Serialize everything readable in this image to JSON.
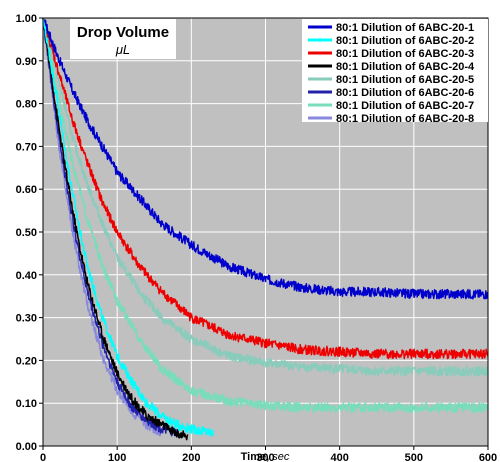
{
  "chart_data": {
    "type": "line",
    "title": "Drop Volume",
    "subtitle": "μL",
    "xlabel": "Time,",
    "xlabel_unit": "sec",
    "ylabel": "",
    "xlim": [
      0,
      600
    ],
    "ylim": [
      0,
      1.0
    ],
    "xticks": [
      0,
      100,
      200,
      300,
      400,
      500,
      600
    ],
    "yticks": [
      "0.00",
      "0.10",
      "0.20",
      "0.30",
      "0.40",
      "0.50",
      "0.60",
      "0.70",
      "0.80",
      "0.90",
      "1.00"
    ],
    "grid": true,
    "background": "#c0c0c0",
    "legend_position": "top-right",
    "series": [
      {
        "name": "80:1 Dilution of 6ABC-20-1",
        "color": "#0000cc",
        "x": [
          0,
          20,
          40,
          60,
          80,
          100,
          130,
          160,
          200,
          250,
          300,
          350,
          400,
          450,
          500,
          550,
          600
        ],
        "y": [
          1.0,
          0.91,
          0.83,
          0.76,
          0.7,
          0.64,
          0.58,
          0.52,
          0.47,
          0.42,
          0.39,
          0.37,
          0.36,
          0.36,
          0.355,
          0.355,
          0.355
        ]
      },
      {
        "name": "80:1 Dilution of 6ABC-20-2",
        "color": "#00ffff",
        "x": [
          0,
          10,
          20,
          30,
          40,
          50,
          60,
          70,
          80,
          100,
          120,
          140,
          160,
          180,
          200,
          230
        ],
        "y": [
          1.0,
          0.9,
          0.8,
          0.69,
          0.59,
          0.5,
          0.42,
          0.36,
          0.3,
          0.21,
          0.15,
          0.1,
          0.07,
          0.05,
          0.04,
          0.03
        ]
      },
      {
        "name": "80:1 Dilution of 6ABC-20-3",
        "color": "#ee0000",
        "x": [
          0,
          20,
          40,
          60,
          80,
          100,
          130,
          160,
          200,
          250,
          300,
          350,
          400,
          450,
          500,
          550,
          600
        ],
        "y": [
          1.0,
          0.88,
          0.76,
          0.66,
          0.57,
          0.5,
          0.42,
          0.36,
          0.3,
          0.26,
          0.24,
          0.225,
          0.22,
          0.215,
          0.215,
          0.215,
          0.215
        ]
      },
      {
        "name": "80:1 Dilution of 6ABC-20-4",
        "color": "#000000",
        "x": [
          0,
          10,
          20,
          30,
          40,
          50,
          60,
          70,
          80,
          100,
          120,
          140,
          160,
          180,
          195
        ],
        "y": [
          1.0,
          0.88,
          0.76,
          0.65,
          0.55,
          0.46,
          0.38,
          0.32,
          0.26,
          0.17,
          0.11,
          0.07,
          0.05,
          0.03,
          0.02
        ]
      },
      {
        "name": "80:1 Dilution of 6ABC-20-5",
        "color": "#88ccbb",
        "x": [
          0,
          20,
          40,
          60,
          80,
          100,
          130,
          160,
          200,
          250,
          300,
          350,
          400,
          450,
          500,
          550,
          600
        ],
        "y": [
          1.0,
          0.86,
          0.72,
          0.61,
          0.52,
          0.44,
          0.36,
          0.3,
          0.25,
          0.21,
          0.195,
          0.185,
          0.18,
          0.175,
          0.175,
          0.175,
          0.175
        ]
      },
      {
        "name": "80:1 Dilution of 6ABC-20-6",
        "color": "#2222aa",
        "x": [
          0,
          10,
          20,
          30,
          40,
          50,
          60,
          70,
          80,
          100,
          120,
          140,
          160,
          180
        ],
        "y": [
          1.0,
          0.87,
          0.74,
          0.63,
          0.53,
          0.44,
          0.36,
          0.3,
          0.24,
          0.15,
          0.09,
          0.06,
          0.04,
          0.03
        ]
      },
      {
        "name": "80:1 Dilution of 6ABC-20-7",
        "color": "#77ddbb",
        "x": [
          0,
          20,
          40,
          60,
          80,
          100,
          130,
          160,
          200,
          250,
          300,
          350,
          400,
          450,
          500,
          550,
          600
        ],
        "y": [
          1.0,
          0.82,
          0.66,
          0.53,
          0.42,
          0.34,
          0.25,
          0.18,
          0.13,
          0.105,
          0.095,
          0.09,
          0.09,
          0.09,
          0.09,
          0.09,
          0.09
        ]
      },
      {
        "name": "80:1 Dilution of 6ABC-20-8",
        "color": "#8888dd",
        "x": [
          0,
          10,
          20,
          30,
          40,
          50,
          60,
          70,
          80,
          100,
          120,
          140,
          160
        ],
        "y": [
          1.0,
          0.86,
          0.72,
          0.6,
          0.5,
          0.41,
          0.33,
          0.27,
          0.21,
          0.13,
          0.08,
          0.05,
          0.03
        ]
      }
    ]
  }
}
